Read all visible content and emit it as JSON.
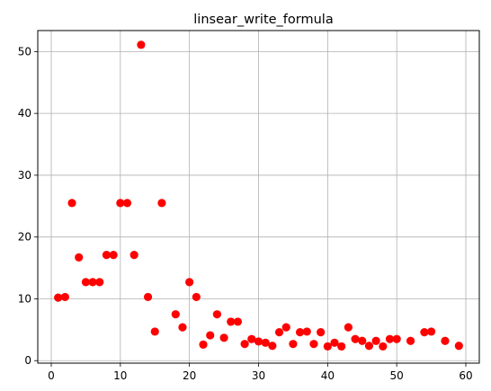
{
  "chart_data": {
    "type": "scatter",
    "title": "linsear_write_formula",
    "xlabel": "",
    "ylabel": "",
    "xlim": [
      -1.95,
      61.95
    ],
    "ylim": [
      -0.4,
      53.4
    ],
    "xticks": [
      0,
      10,
      20,
      30,
      40,
      50,
      60
    ],
    "yticks": [
      0,
      10,
      20,
      30,
      40,
      50
    ],
    "grid": true,
    "marker_color": "#ff0000",
    "points": [
      {
        "x": 1,
        "y": 10.2
      },
      {
        "x": 2,
        "y": 10.3
      },
      {
        "x": 3,
        "y": 25.5
      },
      {
        "x": 4,
        "y": 16.7
      },
      {
        "x": 5,
        "y": 12.7
      },
      {
        "x": 6,
        "y": 12.7
      },
      {
        "x": 7,
        "y": 12.7
      },
      {
        "x": 8,
        "y": 17.1
      },
      {
        "x": 9,
        "y": 17.1
      },
      {
        "x": 10,
        "y": 25.5
      },
      {
        "x": 11,
        "y": 25.5
      },
      {
        "x": 12,
        "y": 17.1
      },
      {
        "x": 13,
        "y": 51.1
      },
      {
        "x": 14,
        "y": 10.3
      },
      {
        "x": 15,
        "y": 4.7
      },
      {
        "x": 16,
        "y": 25.5
      },
      {
        "x": 18,
        "y": 7.5
      },
      {
        "x": 19,
        "y": 5.4
      },
      {
        "x": 20,
        "y": 12.7
      },
      {
        "x": 21,
        "y": 10.3
      },
      {
        "x": 22,
        "y": 2.6
      },
      {
        "x": 23,
        "y": 4.1
      },
      {
        "x": 24,
        "y": 7.5
      },
      {
        "x": 25,
        "y": 3.7
      },
      {
        "x": 26,
        "y": 6.3
      },
      {
        "x": 27,
        "y": 6.3
      },
      {
        "x": 28,
        "y": 2.7
      },
      {
        "x": 29,
        "y": 3.5
      },
      {
        "x": 30,
        "y": 3.1
      },
      {
        "x": 31,
        "y": 2.9
      },
      {
        "x": 32,
        "y": 2.4
      },
      {
        "x": 33,
        "y": 4.6
      },
      {
        "x": 34,
        "y": 5.4
      },
      {
        "x": 35,
        "y": 2.7
      },
      {
        "x": 36,
        "y": 4.6
      },
      {
        "x": 37,
        "y": 4.7
      },
      {
        "x": 38,
        "y": 2.7
      },
      {
        "x": 39,
        "y": 4.6
      },
      {
        "x": 40,
        "y": 2.3
      },
      {
        "x": 41,
        "y": 2.9
      },
      {
        "x": 42,
        "y": 2.3
      },
      {
        "x": 43,
        "y": 5.4
      },
      {
        "x": 44,
        "y": 3.5
      },
      {
        "x": 45,
        "y": 3.2
      },
      {
        "x": 46,
        "y": 2.4
      },
      {
        "x": 47,
        "y": 3.2
      },
      {
        "x": 48,
        "y": 2.3
      },
      {
        "x": 49,
        "y": 3.5
      },
      {
        "x": 50,
        "y": 3.5
      },
      {
        "x": 52,
        "y": 3.2
      },
      {
        "x": 54,
        "y": 4.6
      },
      {
        "x": 55,
        "y": 4.7
      },
      {
        "x": 57,
        "y": 3.2
      },
      {
        "x": 59,
        "y": 2.4
      }
    ]
  }
}
